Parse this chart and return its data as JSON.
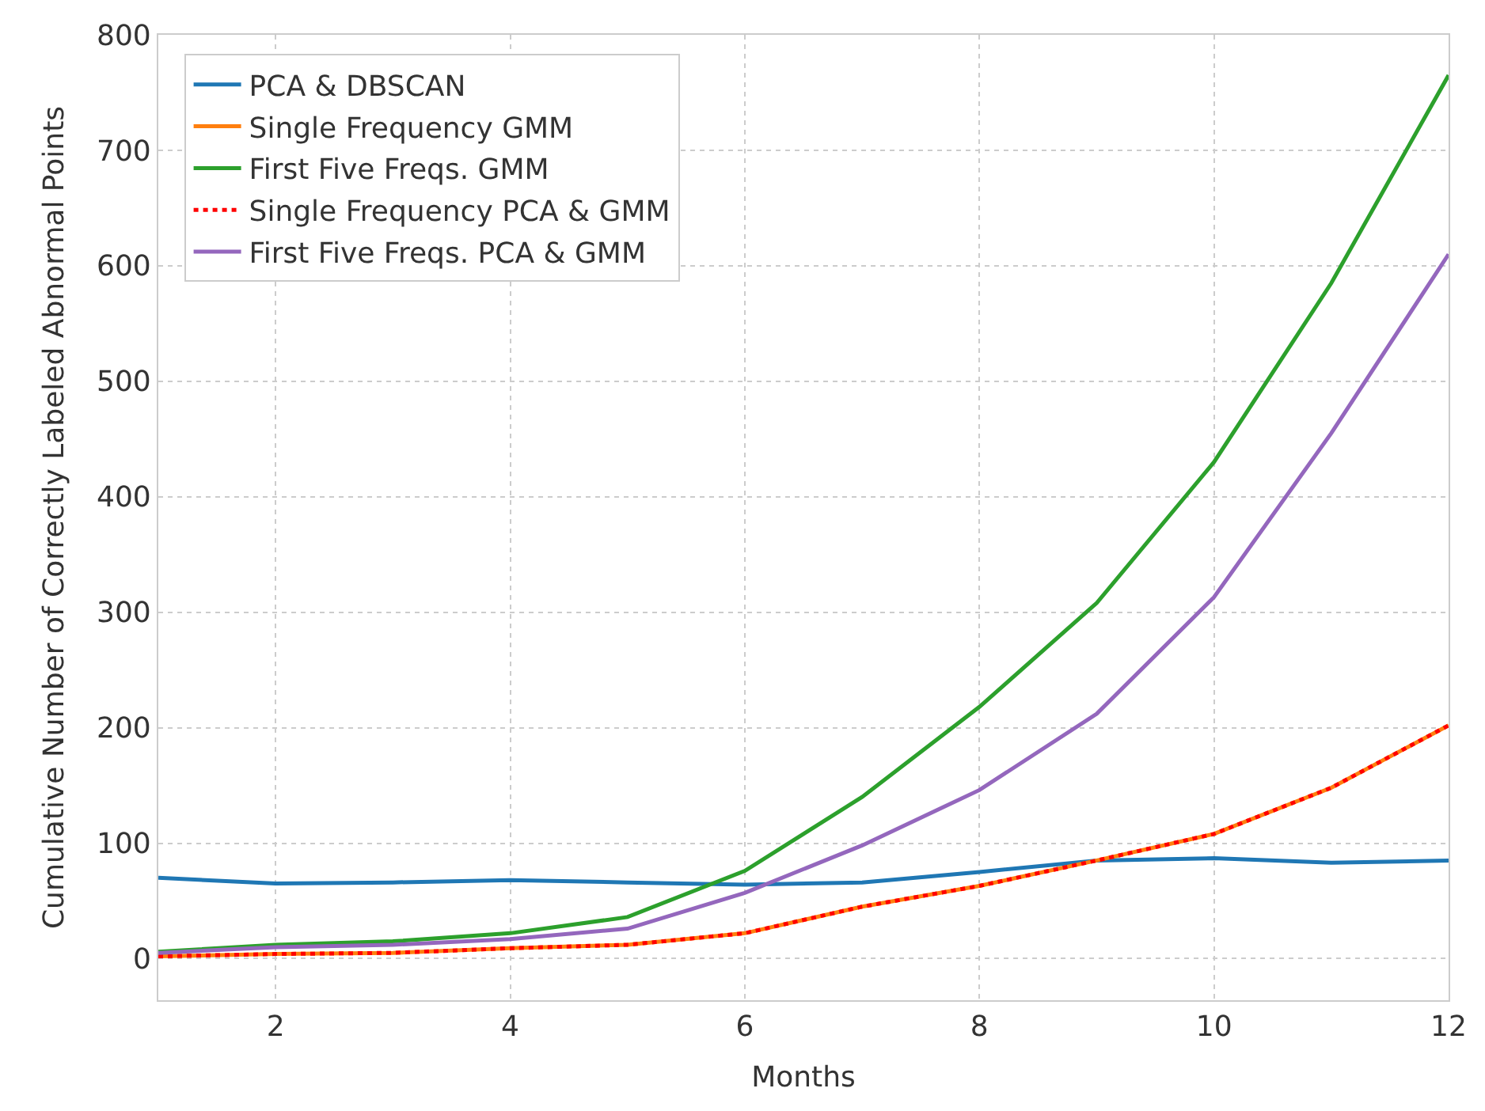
{
  "chart_data": {
    "type": "line",
    "xlabel": "Months",
    "ylabel": "Cumulative Number of Correctly Labeled Abnormal Points",
    "x": [
      1,
      2,
      3,
      4,
      5,
      6,
      7,
      8,
      9,
      10,
      11,
      12
    ],
    "series": [
      {
        "name": "PCA & DBSCAN",
        "color": "#1f77b4",
        "values": [
          70,
          65,
          66,
          68,
          66,
          64,
          66,
          75,
          85,
          87,
          83,
          85
        ]
      },
      {
        "name": "Single Frequency GMM",
        "color": "#ff7f0e",
        "values": [
          2,
          4,
          5,
          9,
          12,
          22,
          45,
          63,
          85,
          108,
          148,
          202
        ]
      },
      {
        "name": "First Five Freqs. GMM",
        "color": "#2ca02c",
        "values": [
          6,
          12,
          15,
          22,
          36,
          76,
          140,
          218,
          308,
          430,
          585,
          765
        ]
      },
      {
        "name": "Single Frequency PCA & GMM",
        "color": "#ff0000",
        "line_style": "dotted",
        "values": [
          2,
          4,
          5,
          9,
          12,
          22,
          45,
          63,
          85,
          108,
          148,
          202
        ]
      },
      {
        "name": "First Five Freqs. PCA & GMM",
        "color": "#9467bd",
        "values": [
          5,
          10,
          12,
          17,
          26,
          57,
          98,
          146,
          212,
          313,
          455,
          610
        ]
      }
    ],
    "xlim": [
      1,
      12
    ],
    "xticks": [
      2,
      4,
      6,
      8,
      10,
      12
    ],
    "ylim": [
      -36,
      800
    ],
    "yticks": [
      0,
      100,
      200,
      300,
      400,
      500,
      600,
      700,
      800
    ],
    "grid": true,
    "legend": "top left",
    "line_style": "solid",
    "marker": "none"
  }
}
